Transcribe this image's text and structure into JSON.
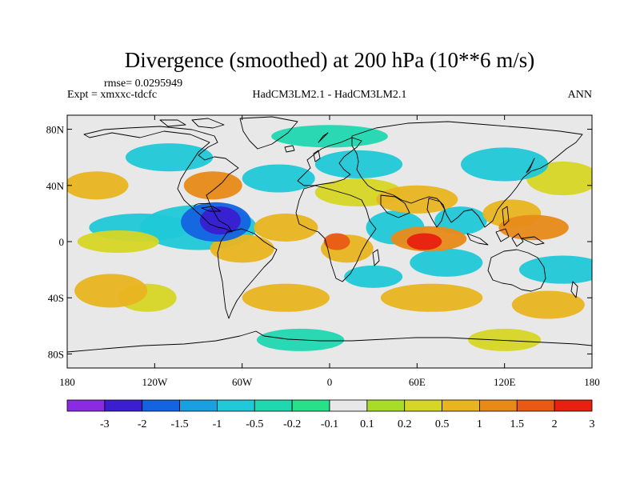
{
  "title": "Divergence (smoothed) at 200 hPa (10**6 m/s)",
  "rmse_text": "rmse= 0.0295949",
  "expt_text": "Expt = xmxxc-tdcfc",
  "model_text": "HadCM3LM2.1 - HadCM3LM2.1",
  "season_text": "ANN",
  "x_ticks": [
    "180",
    "120W",
    "60W",
    "0",
    "60E",
    "120E",
    "180"
  ],
  "y_ticks": [
    "80N",
    "40N",
    "0",
    "40S",
    "80S"
  ],
  "colorbar": {
    "colors": [
      "#8a2be2",
      "#3a1ed0",
      "#1463e0",
      "#1a9fe0",
      "#20c8d8",
      "#20d8b0",
      "#28e08a",
      "#e8e8e8",
      "#a8dc28",
      "#d6d626",
      "#e8b420",
      "#e88a18",
      "#e85a14",
      "#e82010"
    ],
    "labels": [
      "-3",
      "-2",
      "-1.5",
      "-1",
      "-0.5",
      "-0.2",
      "-0.1",
      "0.1",
      "0.2",
      "0.5",
      "1",
      "1.5",
      "2",
      "3"
    ]
  },
  "chart_data": {
    "type": "heatmap",
    "title": "Divergence (smoothed) at 200 hPa (10**6 m/s)",
    "xlabel": "",
    "ylabel": "",
    "xlim": [
      -180,
      180
    ],
    "ylim": [
      -90,
      90
    ],
    "x_tick_values": [
      -180,
      -120,
      -60,
      0,
      60,
      120,
      180
    ],
    "y_tick_values": [
      80,
      40,
      0,
      -40,
      -80
    ],
    "contour_levels": [
      -3,
      -2,
      -1.5,
      -1,
      -0.5,
      -0.2,
      -0.1,
      0.1,
      0.2,
      0.5,
      1,
      1.5,
      2,
      3
    ],
    "background_level": "between -0.1 and 0.1",
    "features": [
      {
        "lon": -75,
        "lat": 15,
        "value": -2.2,
        "lon_radius": 14,
        "lat_radius": 10
      },
      {
        "lon": -78,
        "lat": 14,
        "value": -1.6,
        "lon_radius": 24,
        "lat_radius": 14
      },
      {
        "lon": -90,
        "lat": 10,
        "value": -0.5,
        "lon_radius": 40,
        "lat_radius": 16
      },
      {
        "lon": -60,
        "lat": -5,
        "value": 0.6,
        "lon_radius": 22,
        "lat_radius": 10
      },
      {
        "lon": -130,
        "lat": 10,
        "value": -0.5,
        "lon_radius": 35,
        "lat_radius": 10
      },
      {
        "lon": -160,
        "lat": 40,
        "value": 0.8,
        "lon_radius": 22,
        "lat_radius": 10
      },
      {
        "lon": -145,
        "lat": 0,
        "value": 0.5,
        "lon_radius": 28,
        "lat_radius": 8
      },
      {
        "lon": -150,
        "lat": -35,
        "value": 0.6,
        "lon_radius": 25,
        "lat_radius": 12
      },
      {
        "lon": -125,
        "lat": -40,
        "value": 0.4,
        "lon_radius": 20,
        "lat_radius": 10
      },
      {
        "lon": -80,
        "lat": 40,
        "value": 1.1,
        "lon_radius": 20,
        "lat_radius": 10
      },
      {
        "lon": -35,
        "lat": 45,
        "value": -0.6,
        "lon_radius": 25,
        "lat_radius": 10
      },
      {
        "lon": -30,
        "lat": 10,
        "value": 0.6,
        "lon_radius": 22,
        "lat_radius": 10
      },
      {
        "lon": 5,
        "lat": 0,
        "value": 1.6,
        "lon_radius": 9,
        "lat_radius": 6
      },
      {
        "lon": 12,
        "lat": -5,
        "value": 0.8,
        "lon_radius": 18,
        "lat_radius": 10
      },
      {
        "lon": -30,
        "lat": -40,
        "value": 0.7,
        "lon_radius": 30,
        "lat_radius": 10
      },
      {
        "lon": 20,
        "lat": 35,
        "value": 0.5,
        "lon_radius": 30,
        "lat_radius": 10
      },
      {
        "lon": 20,
        "lat": 55,
        "value": -0.6,
        "lon_radius": 30,
        "lat_radius": 10
      },
      {
        "lon": 45,
        "lat": 10,
        "value": -0.6,
        "lon_radius": 20,
        "lat_radius": 12
      },
      {
        "lon": 65,
        "lat": 0,
        "value": 2.4,
        "lon_radius": 12,
        "lat_radius": 6
      },
      {
        "lon": 68,
        "lat": 2,
        "value": 1.5,
        "lon_radius": 26,
        "lat_radius": 9
      },
      {
        "lon": 60,
        "lat": 30,
        "value": 0.6,
        "lon_radius": 28,
        "lat_radius": 10
      },
      {
        "lon": 90,
        "lat": 15,
        "value": -0.6,
        "lon_radius": 18,
        "lat_radius": 10
      },
      {
        "lon": 80,
        "lat": -15,
        "value": -0.6,
        "lon_radius": 25,
        "lat_radius": 10
      },
      {
        "lon": 70,
        "lat": -40,
        "value": 1.0,
        "lon_radius": 35,
        "lat_radius": 10
      },
      {
        "lon": 140,
        "lat": 10,
        "value": 1.3,
        "lon_radius": 24,
        "lat_radius": 9
      },
      {
        "lon": 125,
        "lat": 20,
        "value": 0.8,
        "lon_radius": 20,
        "lat_radius": 10
      },
      {
        "lon": 160,
        "lat": -20,
        "value": -0.6,
        "lon_radius": 30,
        "lat_radius": 10
      },
      {
        "lon": 150,
        "lat": -45,
        "value": 0.6,
        "lon_radius": 25,
        "lat_radius": 10
      },
      {
        "lon": 160,
        "lat": 45,
        "value": 0.5,
        "lon_radius": 25,
        "lat_radius": 12
      },
      {
        "lon": 120,
        "lat": 55,
        "value": -0.5,
        "lon_radius": 30,
        "lat_radius": 12
      },
      {
        "lon": -110,
        "lat": 60,
        "value": -0.5,
        "lon_radius": 30,
        "lat_radius": 10
      },
      {
        "lon": 0,
        "lat": 75,
        "value": -0.4,
        "lon_radius": 40,
        "lat_radius": 8
      },
      {
        "lon": -20,
        "lat": -70,
        "value": -0.4,
        "lon_radius": 30,
        "lat_radius": 8
      },
      {
        "lon": 120,
        "lat": -70,
        "value": 0.5,
        "lon_radius": 25,
        "lat_radius": 8
      },
      {
        "lon": 30,
        "lat": -25,
        "value": -0.5,
        "lon_radius": 20,
        "lat_radius": 8
      }
    ]
  }
}
